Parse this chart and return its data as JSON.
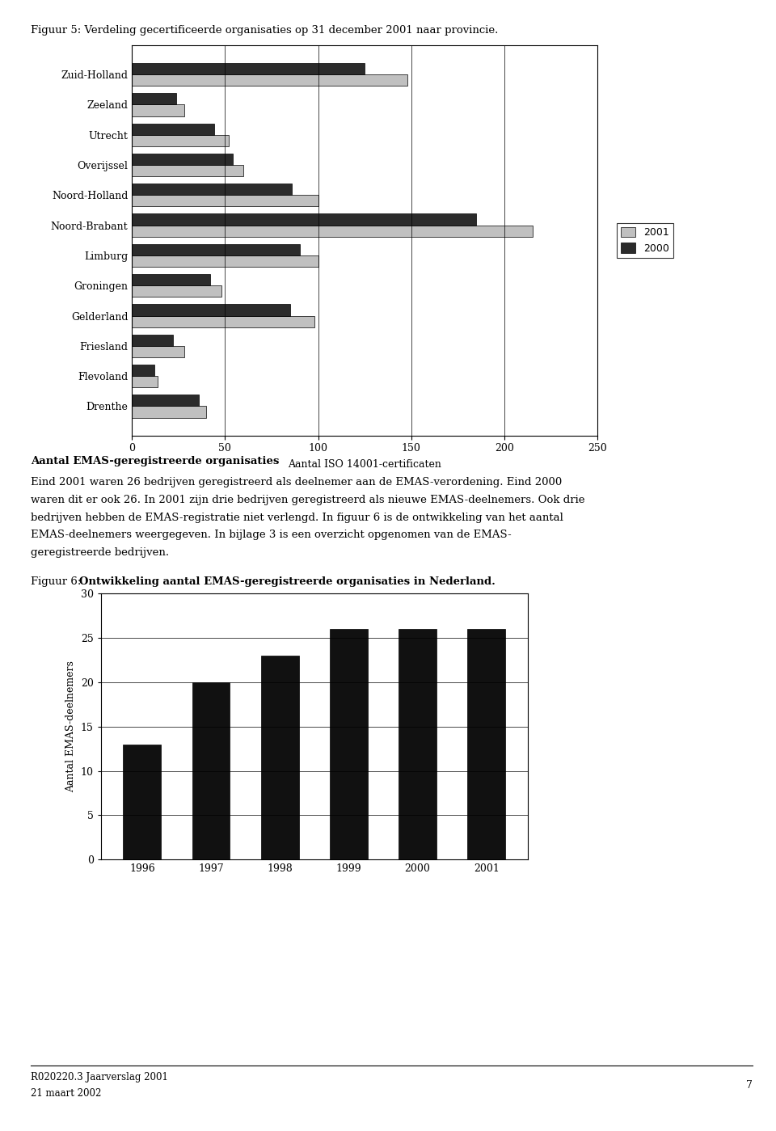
{
  "fig1_title": "Figuur 5: Verdeling gecertificeerde organisaties op 31 december 2001 naar provincie.",
  "fig1_categories": [
    "Zuid-Holland",
    "Zeeland",
    "Utrecht",
    "Overijssel",
    "Noord-Holland",
    "Noord-Brabant",
    "Limburg",
    "Groningen",
    "Gelderland",
    "Friesland",
    "Flevoland",
    "Drenthe"
  ],
  "fig1_values_2001": [
    148,
    28,
    52,
    60,
    100,
    215,
    100,
    48,
    98,
    28,
    14,
    40
  ],
  "fig1_values_2000": [
    125,
    24,
    44,
    54,
    86,
    185,
    90,
    42,
    85,
    22,
    12,
    36
  ],
  "fig1_color_2001": "#c0c0c0",
  "fig1_color_2000": "#2b2b2b",
  "fig1_xlabel": "Aantal ISO 14001-certificaten",
  "fig1_xlim": [
    0,
    250
  ],
  "fig1_xticks": [
    0,
    50,
    100,
    150,
    200,
    250
  ],
  "fig1_legend_2001": "2001",
  "fig1_legend_2000": "2000",
  "body_bold_text": "Aantal EMAS-geregistreerde organisaties",
  "body_line1": "Eind 2001 waren 26 bedrijven geregistreerd als deelnemer aan de EMAS-verordening. Eind 2000",
  "body_line2": "waren dit er ook 26. In 2001 zijn drie bedrijven geregistreerd als nieuwe EMAS-deelnemers. Ook drie",
  "body_line3": "bedrijven hebben de EMAS-registratie niet verlengd. In figuur 6 is de ontwikkeling van het aantal",
  "body_line4": "EMAS-deelnemers weergegeven. In bijlage 3 is een overzicht opgenomen van de EMAS-",
  "body_line5": "geregistreerde bedrijven.",
  "fig2_title": "Figuur 6: Ontwikkeling aantal EMAS-geregistreerde organisaties in Nederland.",
  "fig2_title_plain": "Figuur 6: ",
  "fig2_title_bold": "Ontwikkeling aantal EMAS-geregistreerde organisaties in Nederland.",
  "fig2_categories": [
    "1996",
    "1997",
    "1998",
    "1999",
    "2000",
    "2001"
  ],
  "fig2_values": [
    13,
    20,
    23,
    26,
    26,
    26
  ],
  "fig2_color": "#111111",
  "fig2_ylabel": "Aantal EMAS-deelnemers",
  "fig2_ylim": [
    0,
    30
  ],
  "fig2_yticks": [
    0,
    5,
    10,
    15,
    20,
    25,
    30
  ],
  "footer_text1": "R020220.3 Jaarverslag 2001",
  "footer_text2": "21 maart 2002",
  "footer_page": "7",
  "background_color": "#ffffff"
}
